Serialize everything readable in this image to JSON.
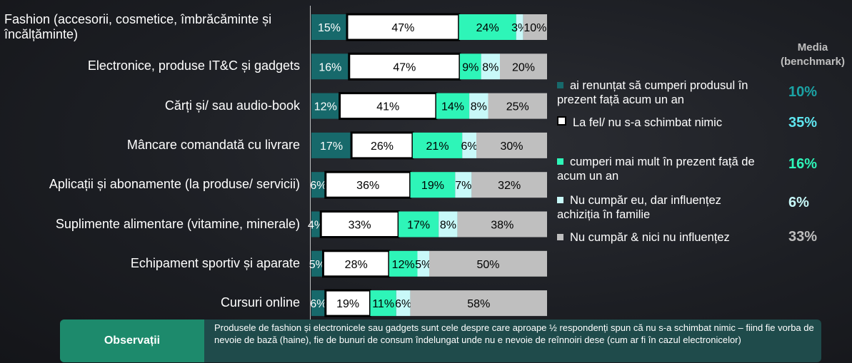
{
  "chart_data": {
    "type": "bar",
    "orientation": "horizontal",
    "stacked": true,
    "categories": [
      "Fashion (accesorii, cosmetice, îmbrăcăminte și încălțăminte)",
      "Electronice, produse IT&C și gadgets",
      "Cărți și/ sau audio-book",
      "Mâncare comandată cu livrare",
      "Aplicații și abonamente (la produse/ servicii)",
      "Suplimente alimentare (vitamine, minerale)",
      "Echipament sportiv și aparate",
      "Cursuri online"
    ],
    "category_lines": [
      [
        "Fashion (accesorii, cosmetice, îmbrăcăminte și",
        "încălțăminte)"
      ],
      [
        "Electronice, produse IT&C și gadgets"
      ],
      [
        "Cărți și/ sau audio-book"
      ],
      [
        "Mâncare comandată cu livrare"
      ],
      [
        "Aplicații și abonamente (la produse/ servicii)"
      ],
      [
        "Suplimente alimentare (vitamine, minerale)"
      ],
      [
        "Echipament sportiv și aparate"
      ],
      [
        "Cursuri online"
      ]
    ],
    "series": [
      {
        "name": "ai renunțat să cumperi produsul în prezent față acum un an",
        "color": "#17696b",
        "label_color": "#ffffff",
        "values": [
          15,
          16,
          12,
          17,
          6,
          4,
          5,
          6
        ]
      },
      {
        "name": "La fel/ nu s-a schimbat nimic",
        "color": "#ffffff",
        "label_color": "#000000",
        "outline": "#000000",
        "values": [
          47,
          47,
          41,
          26,
          36,
          33,
          28,
          19
        ]
      },
      {
        "name": "cumperi mai mult în prezent față de acum un an",
        "color": "#2ef5b8",
        "label_color": "#000000",
        "values": [
          24,
          9,
          14,
          21,
          19,
          17,
          12,
          11
        ]
      },
      {
        "name": "Nu cumpăr eu, dar influențez achiziția în familie",
        "color": "#c8f9f9",
        "label_color": "#000000",
        "values": [
          3,
          8,
          8,
          6,
          7,
          8,
          5,
          6
        ]
      },
      {
        "name": "Nu cumpăr & nici nu influențez",
        "color": "#bfbfbf",
        "label_color": "#000000",
        "values": [
          10,
          20,
          25,
          30,
          32,
          38,
          50,
          58
        ]
      }
    ],
    "xlim": [
      0,
      100
    ],
    "grid": false,
    "legend_position": "right",
    "benchmark_title": [
      "Media",
      "(benchmark)"
    ],
    "benchmark": [
      {
        "value": "10%",
        "color": "#1ba3a5"
      },
      {
        "value": "35%",
        "color": "#5fe6f0"
      },
      {
        "value": "16%",
        "color": "#2ef5b8"
      },
      {
        "value": "6%",
        "color": "#c8f9f9"
      },
      {
        "value": "33%",
        "color": "#bfbfbf"
      }
    ],
    "legend_lines": [
      [
        "ai renunțat să cumperi produsul în",
        "prezent față acum un an"
      ],
      [
        "La fel/ nu s-a schimbat nimic"
      ],
      [
        "cumperi mai mult în prezent față de",
        "acum un an"
      ],
      [
        "Nu cumpăr eu, dar influențez",
        "achiziția în familie"
      ],
      [
        "Nu cumpăr & nici nu influențez"
      ]
    ]
  },
  "observations": {
    "title": "Observații",
    "text": "Produsele de fashion și electronicele sau gadgets sunt cele despre care aproape ½ respondenți spun că nu s-a schimbat nimic – fiind fie vorba de nevoie de bază (haine), fie de bunuri de consum îndelungat unde nu e nevoie de reînnoiri dese (cum ar fi în cazul electronicelor)"
  }
}
